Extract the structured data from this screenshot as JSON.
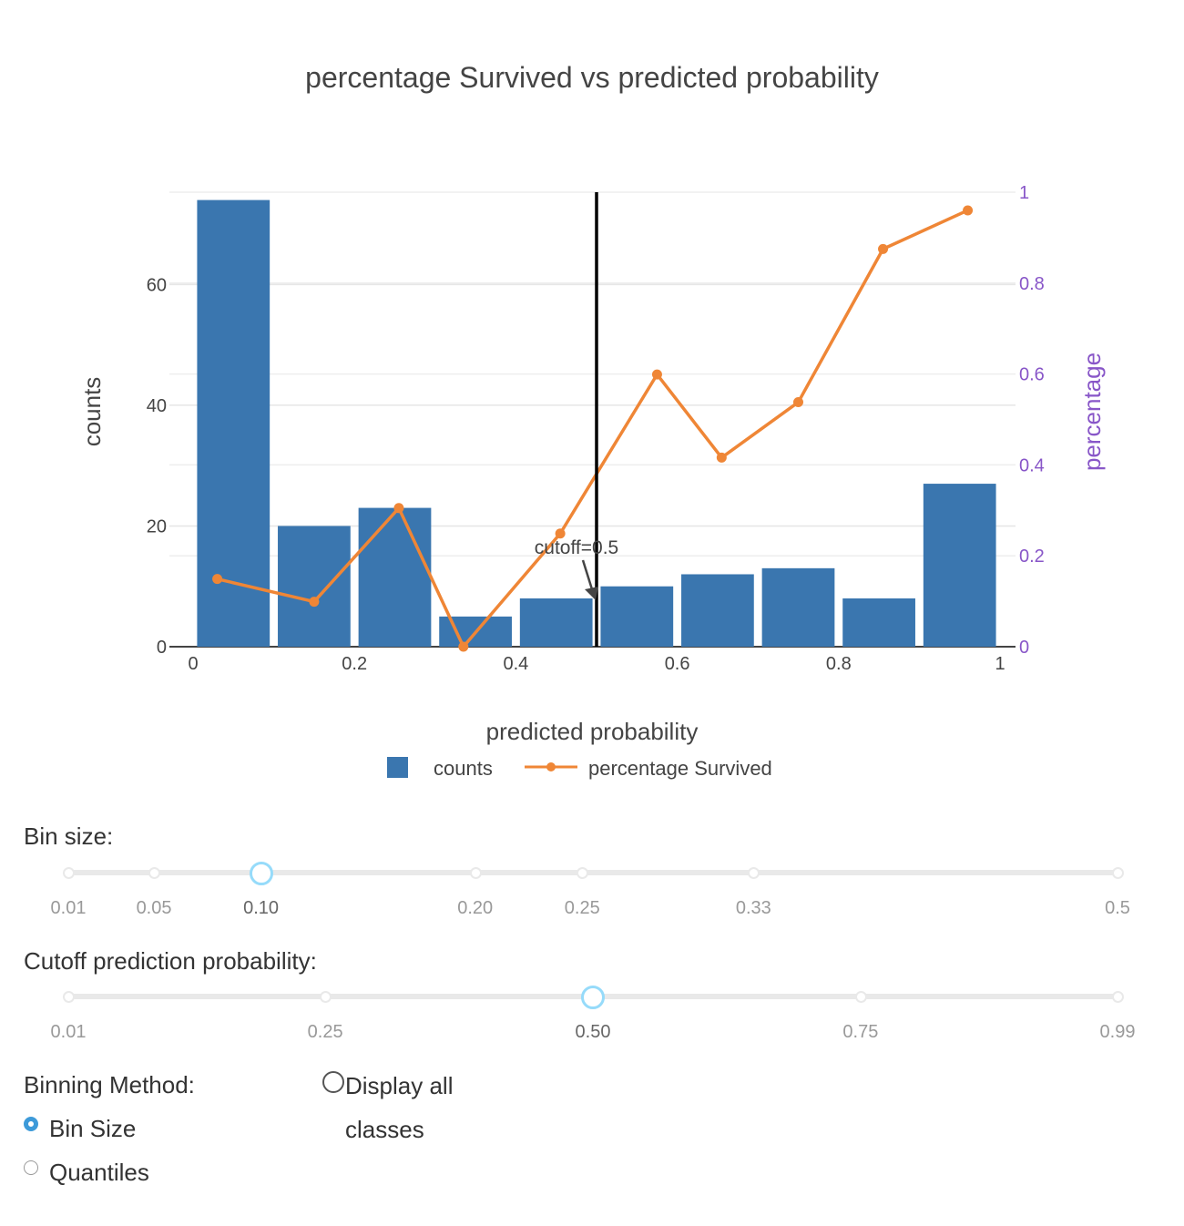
{
  "chart_data": {
    "type": "bar",
    "title": "percentage Survived vs predicted probability",
    "xlabel": "predicted probability",
    "ylabel": "counts",
    "y2label": "percentage",
    "xlim": [
      0,
      1
    ],
    "ylim": [
      0,
      75.3
    ],
    "y2lim": [
      0,
      1
    ],
    "xticks": [
      0,
      0.2,
      0.4,
      0.6,
      0.8,
      1
    ],
    "xtick_labels": [
      "0",
      "0.2",
      "0.4",
      "0.6",
      "0.8",
      "1"
    ],
    "yticks": [
      0,
      20,
      40,
      60
    ],
    "ytick_labels": [
      "0",
      "20",
      "40",
      "60"
    ],
    "y2ticks": [
      0,
      0.2,
      0.4,
      0.6,
      0.8,
      1
    ],
    "y2tick_labels": [
      "0",
      "0.2",
      "0.4",
      "0.6",
      "0.8",
      "1"
    ],
    "grid": true,
    "legend_position": "bottom-center",
    "bars": {
      "name": "counts",
      "color": "#3a76af",
      "x": [
        0.05,
        0.15,
        0.25,
        0.35,
        0.45,
        0.55,
        0.65,
        0.75,
        0.85,
        0.95
      ],
      "values": [
        74,
        20,
        23,
        5,
        8,
        10,
        12,
        13,
        8,
        27
      ]
    },
    "line": {
      "name": "percentage Survived",
      "color": "#ef8636",
      "x": [
        0.03,
        0.15,
        0.255,
        0.335,
        0.455,
        0.575,
        0.655,
        0.75,
        0.855,
        0.96
      ],
      "values": [
        0.149,
        0.099,
        0.305,
        0.0,
        0.249,
        0.599,
        0.416,
        0.538,
        0.875,
        0.96
      ]
    },
    "cutoff": {
      "x": 0.5,
      "label": "cutoff=0.5",
      "arrow_y": 8
    }
  },
  "controls": {
    "bin_size": {
      "label": "Bin size:",
      "marks": [
        "0.01",
        "0.05",
        "0.10",
        "0.20",
        "0.25",
        "0.33",
        "0.5"
      ],
      "mark_values": [
        0.01,
        0.05,
        0.1,
        0.2,
        0.25,
        0.33,
        0.5
      ],
      "value": 0.1
    },
    "cutoff": {
      "label": "Cutoff prediction probability:",
      "marks": [
        "0.01",
        "0.25",
        "0.50",
        "0.75",
        "0.99"
      ],
      "mark_values": [
        0.01,
        0.25,
        0.5,
        0.75,
        0.99
      ],
      "value": 0.5
    },
    "binning": {
      "label": "Binning Method:",
      "options": [
        "Bin Size",
        "Quantiles"
      ],
      "selected": "Bin Size"
    },
    "display_all": {
      "label": "Display all classes",
      "checked": false
    }
  }
}
